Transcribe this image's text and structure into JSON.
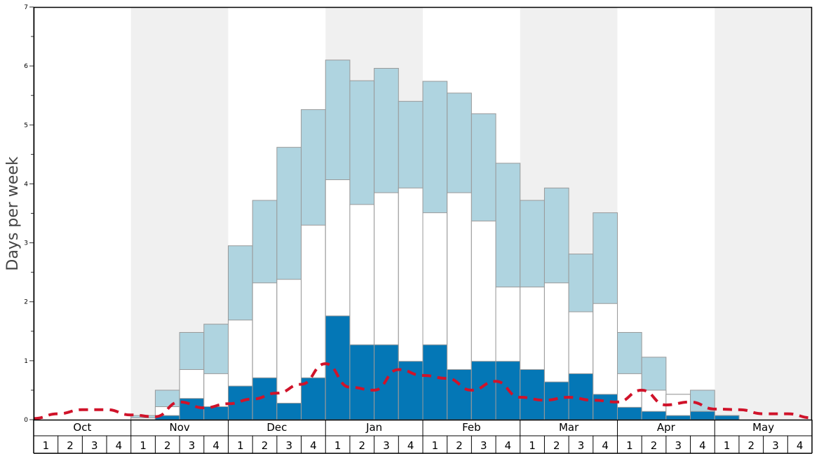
{
  "chart_data": {
    "type": "bar",
    "ylabel": "Days per week",
    "ylim": [
      0,
      7
    ],
    "yticks": [
      "0",
      "1",
      "2",
      "3",
      "4",
      "5",
      "6",
      "7"
    ],
    "months": [
      "Oct",
      "Nov",
      "Dec",
      "Jan",
      "Feb",
      "Mar",
      "Apr",
      "May"
    ],
    "weeks": [
      "1",
      "2",
      "3",
      "4"
    ],
    "colors": {
      "light": "#afd4e0",
      "middle": "#ffffff",
      "dark": "#0477b6",
      "avg_line": "#d0132a",
      "shade": "#f0f0f0",
      "bar_edge": "#999999"
    },
    "series": [
      {
        "name": "",
        "values": [
          0,
          0,
          0,
          0,
          0.07,
          0.5,
          1.48,
          1.62,
          2.95,
          3.72,
          4.62,
          5.26,
          6.1,
          5.75,
          5.96,
          5.4,
          5.74,
          5.54,
          5.19,
          4.35,
          3.72,
          3.93,
          2.81,
          3.51,
          1.48,
          1.06,
          0.43,
          0.5,
          0.07,
          0,
          0,
          0
        ]
      },
      {
        "name": "",
        "values": [
          0,
          0,
          0,
          0,
          0.03,
          0.22,
          0.85,
          0.78,
          1.69,
          2.32,
          2.38,
          3.3,
          4.07,
          3.65,
          3.85,
          3.93,
          3.51,
          3.85,
          3.37,
          2.25,
          2.25,
          2.32,
          1.83,
          1.97,
          0.78,
          0.5,
          0.43,
          0.07,
          0.07,
          0,
          0,
          0
        ]
      },
      {
        "name": "",
        "values": [
          0,
          0,
          0,
          0,
          0,
          0.07,
          0.36,
          0.22,
          0.57,
          0.71,
          0.28,
          0.71,
          1.76,
          1.27,
          1.27,
          0.99,
          1.27,
          0.85,
          0.99,
          0.99,
          0.85,
          0.64,
          0.78,
          0.43,
          0.21,
          0.14,
          0.07,
          0.14,
          0.07,
          0,
          0,
          0
        ]
      },
      {
        "name": "",
        "values": [
          0.02,
          0.1,
          0.17,
          0.17,
          0.08,
          0.05,
          0.3,
          0.2,
          0.27,
          0.35,
          0.45,
          0.6,
          0.95,
          0.55,
          0.5,
          0.85,
          0.75,
          0.7,
          0.5,
          0.65,
          0.38,
          0.33,
          0.38,
          0.33,
          0.3,
          0.5,
          0.25,
          0.3,
          0.18,
          0.17,
          0.1,
          0.1,
          0.03
        ]
      }
    ]
  }
}
